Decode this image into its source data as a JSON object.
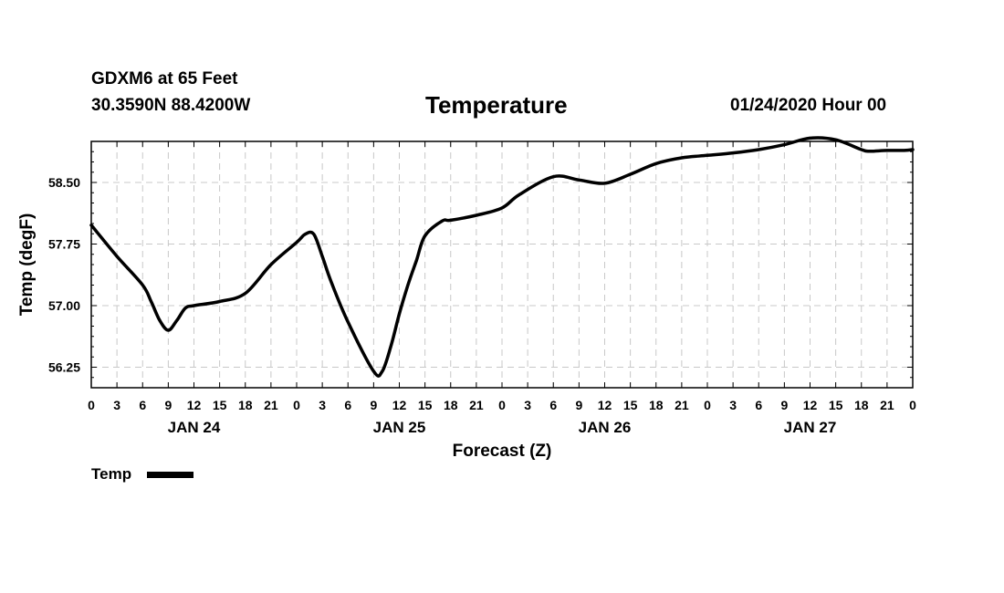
{
  "header": {
    "station": "GDXM6 at 65 Feet",
    "coords": "30.3590N 88.4200W",
    "title": "Temperature",
    "run": "01/24/2020 Hour 00"
  },
  "chart_data": {
    "type": "line",
    "title": "Temperature",
    "xlabel": "Forecast (Z)",
    "ylabel": "Temp (degF)",
    "x_unit": "forecast hour",
    "xlim": [
      0,
      96
    ],
    "ylim": [
      56.0,
      59.0
    ],
    "yticks": [
      56.25,
      57.0,
      57.75,
      58.5
    ],
    "ytick_labels": [
      "56.25",
      "57.00",
      "57.75",
      "58.50"
    ],
    "xticks": [
      0,
      3,
      6,
      9,
      12,
      15,
      18,
      21,
      24,
      27,
      30,
      33,
      36,
      39,
      42,
      45,
      48,
      51,
      54,
      57,
      60,
      63,
      66,
      69,
      72,
      75,
      78,
      81,
      84,
      87,
      90,
      93,
      96
    ],
    "xtick_labels": [
      "0",
      "3",
      "6",
      "9",
      "12",
      "15",
      "18",
      "21",
      "0",
      "3",
      "6",
      "9",
      "12",
      "15",
      "18",
      "21",
      "0",
      "3",
      "6",
      "9",
      "12",
      "15",
      "18",
      "21",
      "0",
      "3",
      "6",
      "9",
      "12",
      "15",
      "18",
      "21",
      "0"
    ],
    "day_labels": [
      {
        "hour": 12,
        "label": "JAN 24"
      },
      {
        "hour": 36,
        "label": "JAN 25"
      },
      {
        "hour": 60,
        "label": "JAN 26"
      },
      {
        "hour": 84,
        "label": "JAN 27"
      }
    ],
    "grid": true,
    "series": [
      {
        "name": "Temp",
        "color": "#000000",
        "x": [
          0,
          3,
          6,
          7,
          8,
          9,
          10,
          11,
          12,
          15,
          18,
          21,
          24,
          25,
          26,
          27,
          28,
          30,
          33,
          34,
          35,
          36,
          37,
          38,
          39,
          41,
          42,
          45,
          48,
          50,
          54,
          57,
          60,
          63,
          66,
          69,
          72,
          75,
          78,
          81,
          84,
          87,
          90,
          91,
          93,
          95,
          96
        ],
        "values": [
          57.98,
          57.6,
          57.25,
          57.05,
          56.82,
          56.7,
          56.82,
          56.97,
          57.0,
          57.05,
          57.15,
          57.5,
          57.77,
          57.87,
          57.87,
          57.6,
          57.3,
          56.8,
          56.2,
          56.2,
          56.5,
          56.9,
          57.25,
          57.55,
          57.85,
          58.03,
          58.04,
          58.1,
          58.19,
          58.35,
          58.57,
          58.53,
          58.49,
          58.6,
          58.73,
          58.8,
          58.83,
          58.86,
          58.9,
          58.96,
          59.04,
          59.02,
          58.9,
          58.88,
          58.89,
          58.89,
          58.9
        ]
      }
    ],
    "legend": {
      "label": "Temp",
      "position": "bottom-left"
    }
  }
}
